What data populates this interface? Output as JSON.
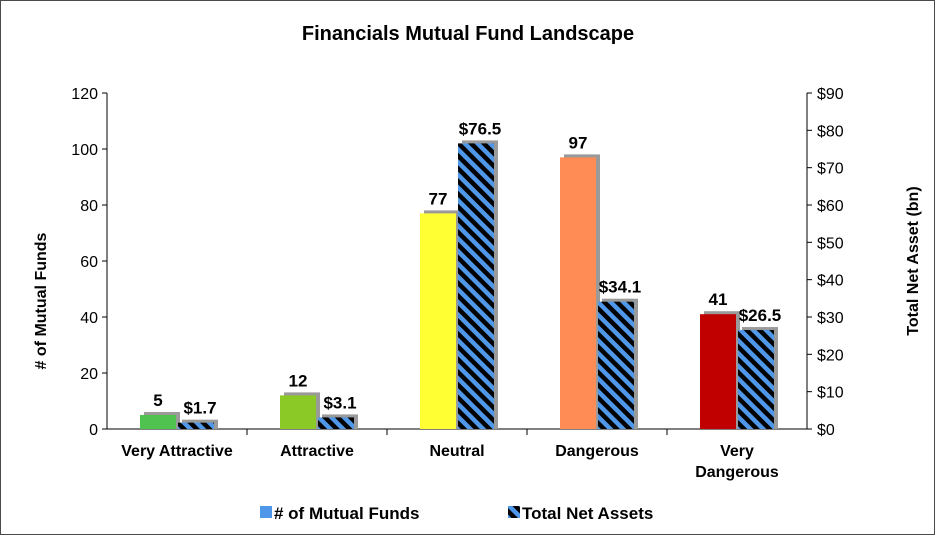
{
  "chart_data": {
    "type": "bar",
    "title": "Financials Mutual Fund Landscape",
    "categories": [
      [
        "Very Attractive"
      ],
      [
        "Attractive"
      ],
      [
        "Neutral"
      ],
      [
        "Dangerous"
      ],
      [
        "Very",
        "Dangerous"
      ]
    ],
    "series": [
      {
        "name": "# of Mutual Funds",
        "axis": "left",
        "values": [
          5,
          12,
          77,
          97,
          41
        ],
        "labels": [
          "5",
          "12",
          "77",
          "97",
          "41"
        ],
        "colors": [
          "#4fc24f",
          "#8ac926",
          "#ffff33",
          "#ff8c55",
          "#c00000"
        ],
        "legend_color": "#4f97e8"
      },
      {
        "name": "Total Net Assets",
        "axis": "right",
        "values": [
          1.7,
          3.1,
          76.5,
          34.1,
          26.5
        ],
        "labels": [
          "$1.7",
          "$3.1",
          "$76.5",
          "$34.1",
          "$26.5"
        ],
        "pattern": "diagonal-stripes",
        "stripe_colors": [
          "#000000",
          "#4f97e8"
        ]
      }
    ],
    "y_left": {
      "label": "# of Mutual Funds",
      "ylim": [
        0,
        120
      ],
      "ticks": [
        "0",
        "20",
        "40",
        "60",
        "80",
        "100",
        "120"
      ]
    },
    "y_right": {
      "label": "Total Net Asset (bn)",
      "ylim": [
        0,
        90
      ],
      "ticks": [
        "$0",
        "$10",
        "$20",
        "$30",
        "$40",
        "$50",
        "$60",
        "$70",
        "$80",
        "$90"
      ]
    },
    "grid": false,
    "legend": "bottom"
  }
}
